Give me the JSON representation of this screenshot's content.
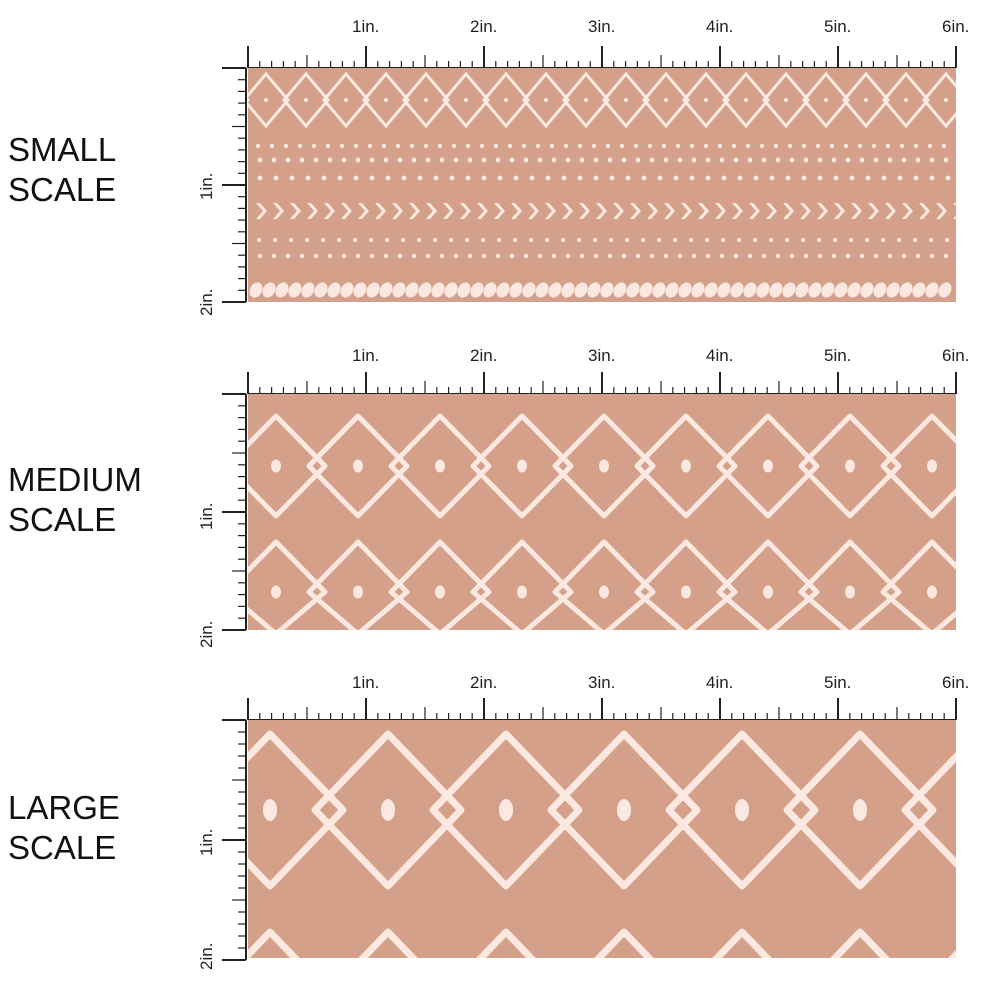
{
  "colors": {
    "fabric": "#d5a08a",
    "pattern": "#fbe9e1",
    "ruler": "#222222",
    "page": "#ffffff"
  },
  "rulers": {
    "top_labels": [
      "1in.",
      "2in.",
      "3in.",
      "4in.",
      "5in.",
      "6in."
    ],
    "side_labels": [
      "1in.",
      "2in."
    ]
  },
  "sections": [
    {
      "label_line1": "SMALL",
      "label_line2": "SCALE"
    },
    {
      "label_line1": "MEDIUM",
      "label_line2": "SCALE"
    },
    {
      "label_line1": "LARGE",
      "label_line2": "SCALE"
    }
  ]
}
